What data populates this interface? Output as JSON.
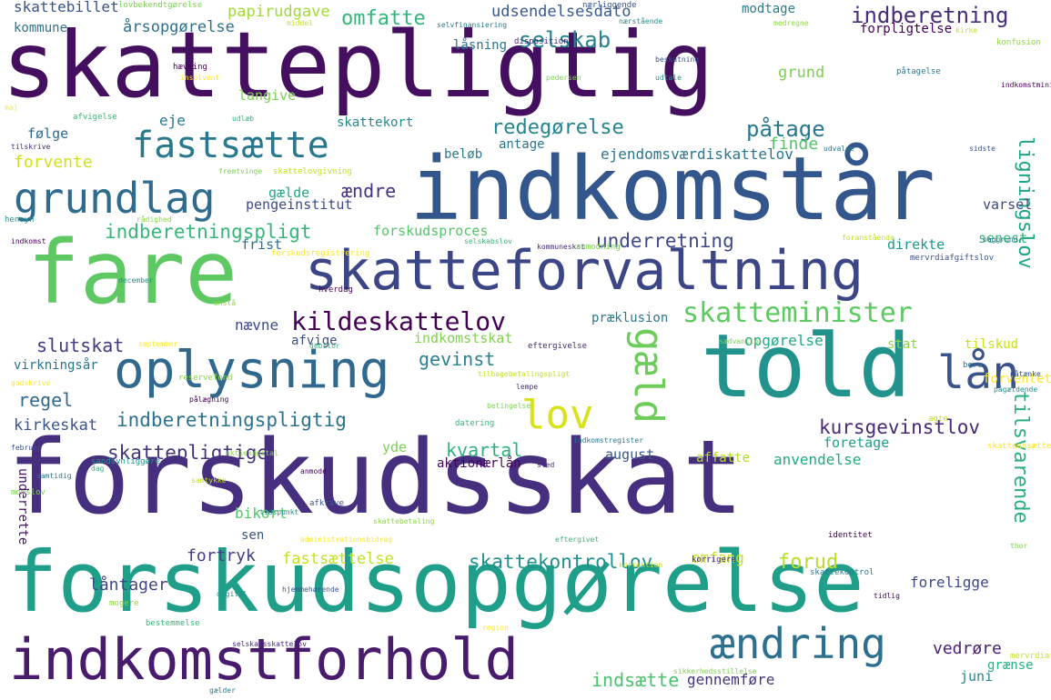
{
  "words": [
    {
      "text": "skattepligtig",
      "color": "#440f5f"
    },
    {
      "text": "indkomstår",
      "color": "#33578c"
    },
    {
      "text": "fare",
      "color": "#5ec862"
    },
    {
      "text": "skatteforvaltning",
      "color": "#3c4686"
    },
    {
      "text": "told",
      "color": "#21928c"
    },
    {
      "text": "forskudsskat",
      "color": "#462f7e"
    },
    {
      "text": "forskudsopgørelse",
      "color": "#1f9e89"
    },
    {
      "text": "indkomstforhold",
      "color": "#481b6d"
    },
    {
      "text": "ændring",
      "color": "#2d6f8e"
    },
    {
      "text": "oplysning",
      "color": "#31688e"
    },
    {
      "text": "fastsætte",
      "color": "#2a788e"
    },
    {
      "text": "grundlag",
      "color": "#2f6b8e"
    },
    {
      "text": "kildeskattelov",
      "color": "#440154"
    },
    {
      "text": "skatteminister",
      "color": "#5ec962"
    },
    {
      "text": "lån",
      "color": "#3b528b"
    },
    {
      "text": "lov",
      "color": "#d8e219"
    },
    {
      "text": "gæld",
      "color": "#6ccd5a"
    },
    {
      "text": "omfatte",
      "color": "#32b67a"
    },
    {
      "text": "selskab",
      "color": "#25838e"
    },
    {
      "text": "indberetning",
      "color": "#472d7b"
    },
    {
      "text": "påtage",
      "color": "#2a788e"
    },
    {
      "text": "redegørelse",
      "color": "#25848e"
    },
    {
      "text": "indberetningspligt",
      "color": "#35b779"
    },
    {
      "text": "underretning",
      "color": "#3e4989"
    },
    {
      "text": "indberetningspligtig",
      "color": "#2c728e"
    },
    {
      "text": "skattepligtige",
      "color": "#46337e"
    },
    {
      "text": "kursgevinstlov",
      "color": "#482878"
    },
    {
      "text": "skattekontrollov",
      "color": "#21918c"
    },
    {
      "text": "tilsvarende",
      "color": "#29af7f"
    },
    {
      "text": "lignings­lov",
      "color": "#20a486"
    },
    {
      "text": "slutskat",
      "color": "#443983"
    },
    {
      "text": "regel",
      "color": "#31688e"
    },
    {
      "text": "kirkeskat",
      "color": "#3a548c"
    },
    {
      "text": "gevinst",
      "color": "#26828e"
    },
    {
      "text": "kvartal",
      "color": "#2eb37c"
    },
    {
      "text": "forud",
      "color": "#b8de29"
    },
    {
      "text": "fortryk",
      "color": "#433e85"
    },
    {
      "text": "låntager",
      "color": "#414487"
    },
    {
      "text": "fastsættelse",
      "color": "#c2df23"
    },
    {
      "text": "årsopgørelse",
      "color": "#2d708e"
    },
    {
      "text": "udsendelsesdato",
      "color": "#38598c"
    },
    {
      "text": "papirudgave",
      "color": "#a0da39"
    },
    {
      "text": "skattebillet",
      "color": "#3b528b"
    },
    {
      "text": "kommune",
      "color": "#2c728e"
    },
    {
      "text": "forventet",
      "color": "#fde725"
    },
    {
      "text": "forvente",
      "color": "#d0e11c"
    },
    {
      "text": "følge",
      "color": "#2f6c8e"
    },
    {
      "text": "eje",
      "color": "#2a768e"
    },
    {
      "text": "skattekort",
      "color": "#24868e"
    },
    {
      "text": "ejendomsværdiskattelov",
      "color": "#2b758e"
    },
    {
      "text": "finde",
      "color": "#54c568"
    },
    {
      "text": "ændre",
      "color": "#46307e"
    },
    {
      "text": "gælde",
      "color": "#22a785"
    },
    {
      "text": "pengeinstitut",
      "color": "#3e4a89"
    },
    {
      "text": "forskudsproces",
      "color": "#54c568"
    },
    {
      "text": "frist",
      "color": "#2e6f8e"
    },
    {
      "text": "direkte",
      "color": "#1f978b"
    },
    {
      "text": "senest",
      "color": "#35b779"
    },
    {
      "text": "varsel",
      "color": "#3f4788"
    },
    {
      "text": "antage",
      "color": "#2a768e"
    },
    {
      "text": "beløb",
      "color": "#2a788e"
    },
    {
      "text": "grund",
      "color": "#7ad151"
    },
    {
      "text": "modtage",
      "color": "#287d8e"
    },
    {
      "text": "forpligtelse",
      "color": "#440154"
    },
    {
      "text": "låsning",
      "color": "#2c738e"
    },
    {
      "text": "langive",
      "color": "#7ad151"
    },
    {
      "text": "nævne",
      "color": "#3e4c8a"
    },
    {
      "text": "afvige",
      "color": "#3d4e8a"
    },
    {
      "text": "præklusion",
      "color": "#2a788e"
    },
    {
      "text": "indkomstskat",
      "color": "#7fd34e"
    },
    {
      "text": "opgørelse",
      "color": "#22a884"
    },
    {
      "text": "stat",
      "color": "#8bd646"
    },
    {
      "text": "tilskud",
      "color": "#c8e020"
    },
    {
      "text": "foretage",
      "color": "#1fa287"
    },
    {
      "text": "yde",
      "color": "#7ad151"
    },
    {
      "text": "august",
      "color": "#38598c"
    },
    {
      "text": "aktionærlån",
      "color": "#450559"
    },
    {
      "text": "affatte",
      "color": "#b5de2b"
    },
    {
      "text": "anvendelse",
      "color": "#22a884"
    },
    {
      "text": "bikort",
      "color": "#56c667"
    },
    {
      "text": "sen",
      "color": "#3a548c"
    },
    {
      "text": "omfang",
      "color": "#c2df23"
    },
    {
      "text": "foreligge",
      "color": "#3e4989"
    },
    {
      "text": "indsætte",
      "color": "#4ac16d"
    },
    {
      "text": "gennemføre",
      "color": "#46337e"
    },
    {
      "text": "vedrøre",
      "color": "#482173"
    },
    {
      "text": "juni",
      "color": "#23898e"
    },
    {
      "text": "grænse",
      "color": "#29af7f"
    },
    {
      "text": "virkningsår",
      "color": "#2c728e"
    },
    {
      "text": "underrette",
      "color": "#471365"
    }
  ],
  "small_words": [
    "lovbekendtgørelse",
    "middel",
    "selvfinansiering",
    "nærliggende",
    "nærstående",
    "medregne",
    "hævning",
    "insolvent",
    "udlæb",
    "disposition",
    "pedersen",
    "kirke",
    "påtagelse",
    "beskatning",
    "udtale",
    "konfusion",
    "indkomstminister",
    "maj",
    "afvigelse",
    "tilskrive",
    "fremtvinge",
    "skattelovgivning",
    "udvalge",
    "sidste",
    "hensyn",
    "rådighed",
    "indkomst",
    "forskudsregistrering",
    "selskabslov",
    "kommuneskat",
    "anmodning",
    "foranstående",
    "baggrund",
    "mervrdiafgiftslov",
    "december",
    "anslå",
    "hverdag",
    "september",
    "debitor",
    "eftergivelse",
    "sædvanlig",
    "tilbagebetalingspligt",
    "bero",
    "påtænke",
    "pågældende",
    "reservefond",
    "pålægning",
    "godskrive",
    "datering",
    "lempe",
    "betingelse",
    "agte",
    "indkomstregister",
    "februar",
    "sandsynliggøre",
    "aktiekapital",
    "anmode",
    "skatteansættelse",
    "dag",
    "sted",
    "momslov",
    "samtykke",
    "samtidig",
    "afkræve",
    "tidspunkt",
    "skattebetaling",
    "identitet",
    "administrationsbidrag",
    "eftergivet",
    "korrigere",
    "thor",
    "korrektion",
    "skattekontrol",
    "hjemmehørende",
    "digital",
    "mogere",
    "tidlig",
    "region",
    "bestemmelse",
    "selskabsskattelov",
    "sikkerhedsstillelse",
    "mervrdiafgift",
    "gælder"
  ]
}
